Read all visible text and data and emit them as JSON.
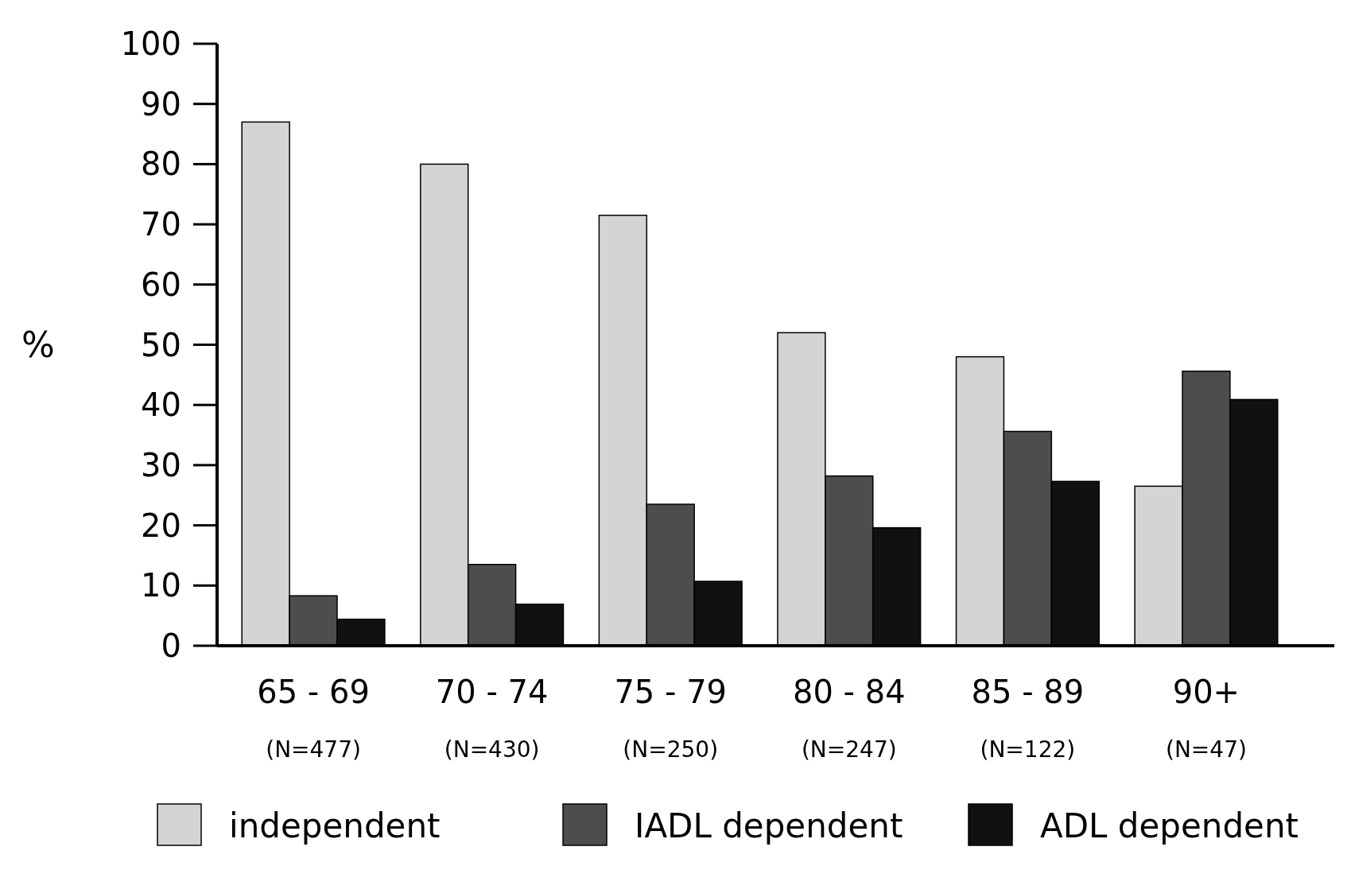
{
  "chart_data": {
    "type": "bar",
    "ylabel": "%",
    "categories": [
      "65 - 69\n(N=477)",
      "70 - 74\n(N=430)",
      "75 - 79\n(N=250)",
      "80 - 84\n(N=247)",
      "85 - 89\n(N=122)",
      "90+\n(N=47)"
    ],
    "series": [
      {
        "name": "independent",
        "color": "#d4d4d4",
        "values": [
          87,
          80,
          71.5,
          52,
          48,
          26.5
        ]
      },
      {
        "name": "IADL dependent",
        "color": "#4d4d4d",
        "values": [
          8.3,
          13.5,
          23.5,
          28.2,
          35.6,
          45.6
        ]
      },
      {
        "name": "ADL dependent",
        "color": "#111111",
        "values": [
          4.4,
          6.9,
          10.7,
          19.6,
          27.3,
          40.9
        ]
      }
    ],
    "ylim": [
      0,
      100
    ],
    "yticks": [
      0,
      10,
      20,
      30,
      40,
      50,
      60,
      70,
      80,
      90,
      100
    ],
    "grid": false,
    "legend": "bottom"
  }
}
